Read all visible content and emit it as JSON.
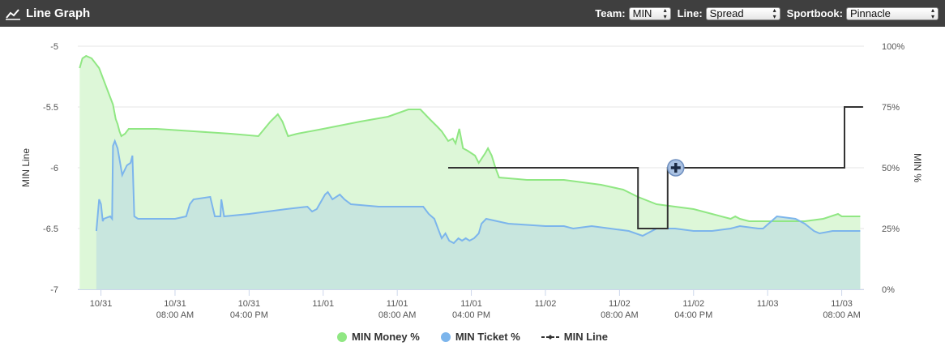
{
  "header": {
    "title": "Line Graph",
    "icon": "line-chart-icon",
    "team_label": "Team:",
    "team_value": "MIN",
    "line_label": "Line:",
    "line_value": "Spread",
    "sportbook_label": "Sportbook:",
    "sportbook_value": "Pinnacle"
  },
  "colors": {
    "money": "#90e783",
    "money_fill": "#ddf7d8",
    "ticket": "#7cb5ec",
    "ticket_fill": "#c8e6de",
    "line": "#333333",
    "header_bg": "#3f3f3f"
  },
  "chart_data": {
    "type": "line",
    "left_axis": {
      "label": "MIN Line",
      "ticks": [
        "-5",
        "-5.5",
        "-6",
        "-6.5",
        "-7"
      ],
      "range": [
        -7,
        -5
      ]
    },
    "right_axis": {
      "label": "MIN %",
      "ticks": [
        "100%",
        "75%",
        "50%",
        "25%",
        "0%"
      ],
      "range": [
        0,
        100
      ]
    },
    "x_ticks": [
      {
        "t": 0,
        "line1": "10/31",
        "line2": ""
      },
      {
        "t": 8,
        "line1": "10/31",
        "line2": "08:00 AM"
      },
      {
        "t": 16,
        "line1": "10/31",
        "line2": "04:00 PM"
      },
      {
        "t": 24,
        "line1": "11/01",
        "line2": ""
      },
      {
        "t": 32,
        "line1": "11/01",
        "line2": "08:00 AM"
      },
      {
        "t": 40,
        "line1": "11/01",
        "line2": "04:00 PM"
      },
      {
        "t": 48,
        "line1": "11/02",
        "line2": ""
      },
      {
        "t": 56,
        "line1": "11/02",
        "line2": "08:00 AM"
      },
      {
        "t": 64,
        "line1": "11/02",
        "line2": "04:00 PM"
      },
      {
        "t": 72,
        "line1": "11/03",
        "line2": ""
      },
      {
        "t": 80,
        "line1": "11/03",
        "line2": "08:00 AM"
      }
    ],
    "x_range": [
      -2.5,
      82.4
    ],
    "series": [
      {
        "name": "MIN Money %",
        "axis": "right",
        "points": [
          [
            -2.3,
            91
          ],
          [
            -2.0,
            95
          ],
          [
            -1.6,
            96
          ],
          [
            -1.0,
            95
          ],
          [
            -0.2,
            91
          ],
          [
            0.6,
            83
          ],
          [
            1.3,
            76
          ],
          [
            1.6,
            70
          ],
          [
            1.8,
            68
          ],
          [
            2.0,
            65
          ],
          [
            2.2,
            63
          ],
          [
            2.6,
            64
          ],
          [
            3.0,
            66
          ],
          [
            6,
            66
          ],
          [
            10,
            65
          ],
          [
            14,
            64
          ],
          [
            17,
            63
          ],
          [
            18.3,
            69
          ],
          [
            19.1,
            72
          ],
          [
            19.6,
            69
          ],
          [
            20.2,
            63
          ],
          [
            21.2,
            64
          ],
          [
            24,
            66
          ],
          [
            28,
            69
          ],
          [
            31,
            71
          ],
          [
            33.2,
            74
          ],
          [
            34.5,
            74
          ],
          [
            35.5,
            70
          ],
          [
            36.3,
            67
          ],
          [
            36.8,
            65
          ],
          [
            37.5,
            61
          ],
          [
            38.0,
            62
          ],
          [
            38.3,
            60
          ],
          [
            38.7,
            66
          ],
          [
            39.1,
            58
          ],
          [
            39.6,
            57
          ],
          [
            40.4,
            55
          ],
          [
            40.8,
            52
          ],
          [
            41.5,
            56
          ],
          [
            41.8,
            58
          ],
          [
            42.2,
            55
          ],
          [
            42.6,
            50
          ],
          [
            43.0,
            46
          ],
          [
            46,
            45
          ],
          [
            50,
            45
          ],
          [
            54,
            43
          ],
          [
            56.4,
            41
          ],
          [
            58,
            38
          ],
          [
            60,
            35
          ],
          [
            62,
            34
          ],
          [
            64,
            33
          ],
          [
            66,
            31
          ],
          [
            68,
            29
          ],
          [
            68.5,
            30
          ],
          [
            69,
            29
          ],
          [
            70,
            28
          ],
          [
            72,
            28
          ],
          [
            76,
            28
          ],
          [
            78,
            29
          ],
          [
            79.6,
            31
          ],
          [
            80.0,
            30
          ],
          [
            82.0,
            30
          ]
        ]
      },
      {
        "name": "MIN Ticket %",
        "axis": "right",
        "points": [
          [
            -0.5,
            24
          ],
          [
            -0.2,
            37
          ],
          [
            0.0,
            35
          ],
          [
            0.2,
            28
          ],
          [
            0.3,
            29
          ],
          [
            1.0,
            30
          ],
          [
            1.2,
            29
          ],
          [
            1.3,
            59
          ],
          [
            1.5,
            61
          ],
          [
            1.8,
            58
          ],
          [
            2.3,
            47
          ],
          [
            2.8,
            51
          ],
          [
            3.2,
            52
          ],
          [
            3.4,
            55
          ],
          [
            3.6,
            30
          ],
          [
            4,
            29
          ],
          [
            8,
            29
          ],
          [
            9.2,
            30
          ],
          [
            9.6,
            35
          ],
          [
            10,
            37
          ],
          [
            11.8,
            38
          ],
          [
            12.3,
            30
          ],
          [
            12.9,
            30
          ],
          [
            13,
            37
          ],
          [
            13.3,
            30
          ],
          [
            16,
            31
          ],
          [
            20,
            33
          ],
          [
            22.3,
            34
          ],
          [
            22.8,
            32
          ],
          [
            23.3,
            33
          ],
          [
            24.2,
            39
          ],
          [
            24.5,
            40
          ],
          [
            25.0,
            37
          ],
          [
            25.8,
            39
          ],
          [
            26.3,
            37
          ],
          [
            27,
            35
          ],
          [
            30,
            34
          ],
          [
            34.8,
            34
          ],
          [
            35.4,
            31
          ],
          [
            36.0,
            29
          ],
          [
            36.4,
            25
          ],
          [
            36.8,
            21
          ],
          [
            37.2,
            23
          ],
          [
            37.6,
            20
          ],
          [
            38.1,
            19
          ],
          [
            38.6,
            21
          ],
          [
            39,
            20
          ],
          [
            39.4,
            21
          ],
          [
            39.8,
            20
          ],
          [
            40.3,
            21
          ],
          [
            40.8,
            23
          ],
          [
            41.1,
            27
          ],
          [
            41.6,
            29
          ],
          [
            44,
            27
          ],
          [
            48,
            26
          ],
          [
            50,
            26
          ],
          [
            51,
            25
          ],
          [
            53,
            26
          ],
          [
            55,
            25
          ],
          [
            57,
            24
          ],
          [
            58.5,
            22
          ],
          [
            60,
            25
          ],
          [
            62,
            25
          ],
          [
            64,
            24
          ],
          [
            66,
            24
          ],
          [
            68,
            25
          ],
          [
            69,
            26
          ],
          [
            71,
            25
          ],
          [
            71.5,
            25
          ],
          [
            73,
            30
          ],
          [
            75,
            29
          ],
          [
            76,
            27
          ],
          [
            77,
            24
          ],
          [
            77.6,
            23
          ],
          [
            79,
            24
          ],
          [
            82,
            24
          ]
        ]
      },
      {
        "name": "MIN Line",
        "axis": "left",
        "points": [
          [
            37.5,
            -6
          ],
          [
            58.0,
            -6
          ],
          [
            58.0,
            -6.5
          ],
          [
            61.2,
            -6.5
          ],
          [
            61.2,
            -6
          ],
          [
            80.3,
            -6
          ],
          [
            80.3,
            -5.5
          ],
          [
            82.3,
            -5.5
          ]
        ]
      }
    ],
    "legend": [
      {
        "label": "MIN Money %",
        "color": "#90e783",
        "marker": "circle"
      },
      {
        "label": "MIN Ticket %",
        "color": "#7cb5ec",
        "marker": "circle"
      },
      {
        "label": "MIN Line",
        "color": "#333333",
        "marker": "line"
      }
    ],
    "legend_position": "bottom",
    "grid": true
  }
}
